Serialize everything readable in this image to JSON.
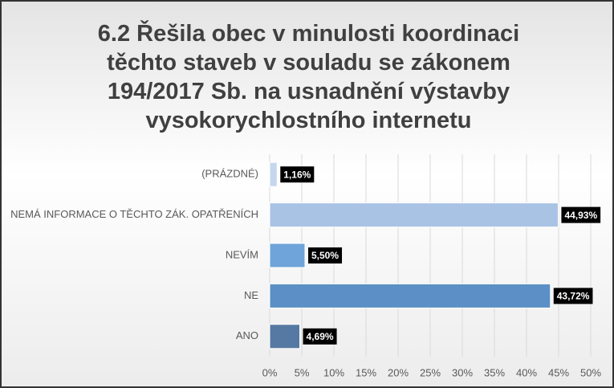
{
  "chart_data": {
    "type": "bar",
    "orientation": "horizontal",
    "title": "6.2 Řešila obec v minulosti koordinaci těchto staveb v souladu se zákonem 194/2017 Sb. na usnadnění výstavby vysokorychlostního internetu",
    "categories": [
      "(PRÁZDNÉ)",
      "NEMÁ INFORMACE O TĚCHTO ZÁK. OPATŘENÍCH",
      "NEVÍM",
      "NE",
      "ANO"
    ],
    "values": [
      1.16,
      44.93,
      5.5,
      43.72,
      4.69
    ],
    "value_labels": [
      "1,16%",
      "44,93%",
      "5,50%",
      "43,72%",
      "4,69%"
    ],
    "colors": [
      "#c5d7ec",
      "#a9c3e5",
      "#6ea4d9",
      "#5c8fc5",
      "#5579a2"
    ],
    "xlim": [
      0,
      50
    ],
    "xticks": [
      {
        "value": 0,
        "label": "0%"
      },
      {
        "value": 5,
        "label": "5%"
      },
      {
        "value": 10,
        "label": "10%"
      },
      {
        "value": 15,
        "label": "15%"
      },
      {
        "value": 20,
        "label": "20%"
      },
      {
        "value": 25,
        "label": "25%"
      },
      {
        "value": 30,
        "label": "30%"
      },
      {
        "value": 35,
        "label": "35%"
      },
      {
        "value": 40,
        "label": "40%"
      },
      {
        "value": 45,
        "label": "45%"
      },
      {
        "value": 50,
        "label": "50%"
      }
    ],
    "grid": true
  }
}
